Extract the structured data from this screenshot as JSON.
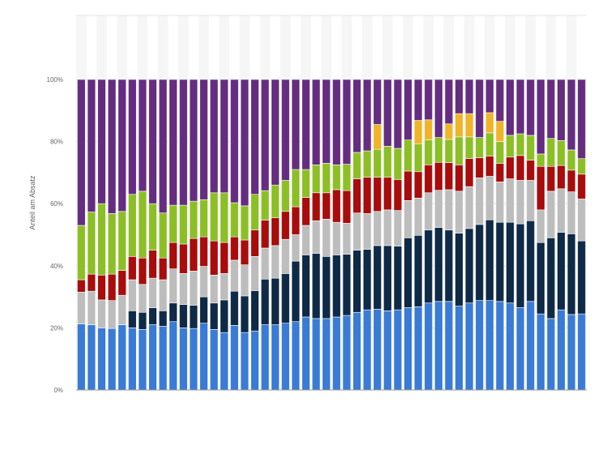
{
  "chart_data": {
    "type": "bar",
    "stacked": true,
    "title": "",
    "xlabel": "",
    "ylabel": "Anteil am Absatz",
    "ylim": [
      0,
      100
    ],
    "yticks": [
      {
        "value": 0,
        "label": "0%"
      },
      {
        "value": 20,
        "label": "20%"
      },
      {
        "value": 40,
        "label": "40%"
      },
      {
        "value": 60,
        "label": "60%"
      },
      {
        "value": 80,
        "label": "80%"
      },
      {
        "value": 100,
        "label": "100%"
      }
    ],
    "grid": true,
    "legend": "none",
    "colors": [
      "#3a7bd5",
      "#0e2a47",
      "#bdbdbd",
      "#a80c0c",
      "#8cbf26",
      "#f0b429",
      "#652d80"
    ],
    "series": [
      {
        "values": [
          21.3,
          21.0,
          20.0,
          19.8,
          21.0,
          20.0,
          19.5,
          21.0,
          20.5,
          22.0,
          20.0,
          19.8,
          21.5,
          19.5,
          18.5,
          20.8,
          18.5,
          19.0,
          21.0,
          21.0,
          21.5,
          22.0,
          23.5,
          23.0,
          23.0,
          23.5,
          24.0,
          25.0,
          25.8,
          26.0,
          25.5,
          25.8,
          26.5,
          26.8,
          28.0,
          28.5,
          28.5,
          27.0,
          28.0,
          28.8,
          28.8,
          28.5,
          28.0,
          26.5,
          28.5,
          24.5,
          23.0,
          25.8,
          24.3,
          24.5
        ]
      },
      {
        "values": [
          0,
          0,
          0,
          0,
          0,
          5.5,
          5.5,
          5.5,
          5.0,
          6.0,
          7.5,
          7.5,
          8.5,
          8.5,
          10.5,
          11.0,
          11.8,
          13.0,
          14.7,
          15.0,
          16.0,
          19.5,
          20.0,
          21.0,
          20.0,
          20.0,
          19.7,
          20.0,
          19.5,
          20.5,
          21.0,
          20.5,
          22.5,
          23.0,
          23.5,
          23.8,
          23.0,
          23.5,
          24.0,
          24.5,
          26.0,
          25.5,
          26.0,
          27.0,
          26.0,
          23.0,
          26.0,
          25.0,
          26.0,
          23.5
        ]
      },
      {
        "values": [
          10.2,
          10.8,
          9.0,
          9.0,
          9.5,
          10.0,
          9.0,
          9.5,
          10.0,
          11.0,
          10.0,
          11.0,
          9.8,
          9.0,
          8.5,
          10.0,
          10.0,
          11.0,
          10.0,
          10.5,
          11.0,
          8.5,
          9.5,
          10.5,
          12.0,
          10.5,
          10.0,
          12.0,
          11.5,
          11.0,
          11.5,
          11.5,
          12.0,
          12.0,
          12.0,
          12.0,
          13.0,
          13.5,
          13.5,
          15.0,
          14.0,
          13.0,
          14.0,
          14.0,
          13.0,
          10.5,
          15.0,
          14.0,
          13.5,
          13.5
        ]
      },
      {
        "values": [
          4.0,
          5.5,
          8.0,
          8.5,
          8.0,
          7.5,
          8.5,
          9.0,
          7.0,
          8.5,
          9.5,
          10.5,
          9.5,
          11.0,
          10.0,
          7.5,
          8.0,
          8.5,
          9.0,
          9.0,
          9.0,
          9.0,
          9.0,
          9.0,
          8.5,
          10.5,
          10.5,
          11.0,
          11.7,
          11.0,
          10.5,
          10.0,
          9.5,
          8.5,
          9.0,
          9.0,
          8.7,
          8.5,
          9.0,
          6.5,
          6.5,
          6.0,
          7.0,
          8.0,
          6.5,
          14.0,
          8.0,
          7.5,
          7.0,
          8.0
        ]
      },
      {
        "values": [
          17.5,
          20.0,
          23.0,
          19.5,
          19.0,
          20.0,
          21.5,
          15.0,
          14.5,
          12.0,
          12.5,
          12.0,
          12.0,
          15.5,
          16.0,
          11.0,
          11.0,
          11.5,
          9.5,
          10.5,
          10.0,
          12.0,
          9.0,
          9.0,
          9.5,
          8.0,
          8.5,
          8.5,
          8.5,
          9.0,
          10.0,
          10.0,
          10.0,
          9.0,
          8.0,
          8.0,
          7.5,
          9.0,
          7.0,
          6.5,
          7.5,
          7.0,
          7.0,
          7.0,
          8.0,
          4.0,
          9.0,
          8.0,
          6.5,
          5.0
        ]
      },
      {
        "values": [
          0,
          0,
          0,
          0,
          0,
          0,
          0,
          0,
          0,
          0,
          0,
          0,
          0,
          0,
          0,
          0,
          0,
          0,
          0,
          0,
          0,
          0,
          0,
          0,
          0,
          0,
          0,
          0,
          0,
          8.0,
          0,
          0,
          0,
          7.5,
          6.5,
          0,
          5.0,
          7.5,
          7.5,
          0,
          6.5,
          6.5,
          0,
          0,
          0,
          0,
          0,
          0,
          0,
          0
        ]
      },
      {
        "values": [
          47.0,
          42.7,
          40.0,
          43.2,
          42.5,
          37.0,
          36.0,
          40.0,
          43.0,
          40.5,
          40.5,
          39.2,
          38.7,
          36.5,
          36.5,
          39.7,
          40.7,
          37.0,
          35.8,
          34.0,
          32.5,
          29.0,
          29.0,
          27.5,
          27.0,
          27.5,
          27.3,
          23.5,
          23.0,
          14.5,
          21.5,
          22.2,
          19.5,
          13.2,
          13.0,
          18.7,
          14.3,
          11.0,
          11.0,
          18.7,
          10.7,
          13.5,
          18.0,
          17.5,
          18.0,
          24.0,
          19.0,
          19.7,
          22.7,
          25.5
        ]
      }
    ]
  }
}
